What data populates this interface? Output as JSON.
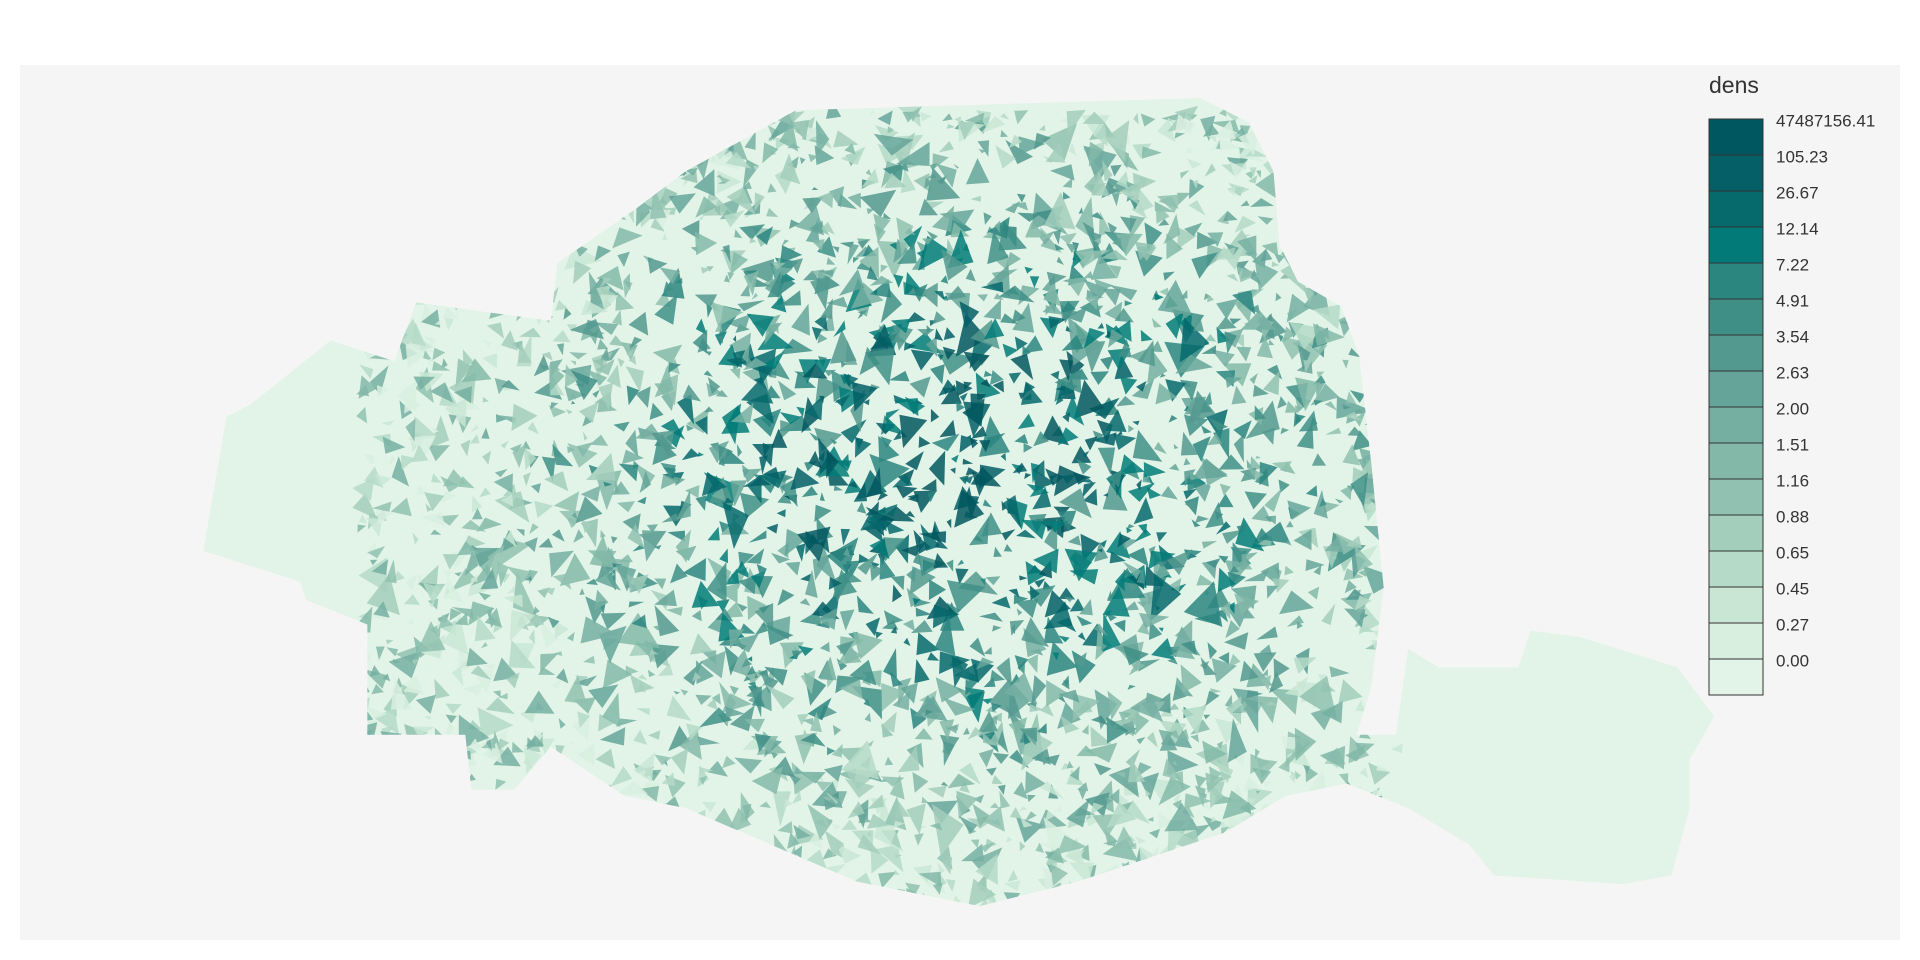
{
  "legend": {
    "title": "dens",
    "classes": [
      {
        "label": "47487156.41",
        "color": "#01575f"
      },
      {
        "label": "105.23",
        "color": "#045f66"
      },
      {
        "label": "26.67",
        "color": "#06696c"
      },
      {
        "label": "12.14",
        "color": "#027b78"
      },
      {
        "label": "7.22",
        "color": "#2b8680"
      },
      {
        "label": "4.91",
        "color": "#3f8f87"
      },
      {
        "label": "3.54",
        "color": "#53998f"
      },
      {
        "label": "2.63",
        "color": "#65a599"
      },
      {
        "label": "2.00",
        "color": "#74afa1"
      },
      {
        "label": "1.51",
        "color": "#83b8a8"
      },
      {
        "label": "1.16",
        "color": "#91c1b0"
      },
      {
        "label": "0.88",
        "color": "#a3cebc"
      },
      {
        "label": "0.65",
        "color": "#b5dbc8"
      },
      {
        "label": "0.45",
        "color": "#c9e6d4"
      },
      {
        "label": "0.27",
        "color": "#d8eedf"
      },
      {
        "label": "0.00",
        "color": "#e2f3e7"
      }
    ]
  }
}
